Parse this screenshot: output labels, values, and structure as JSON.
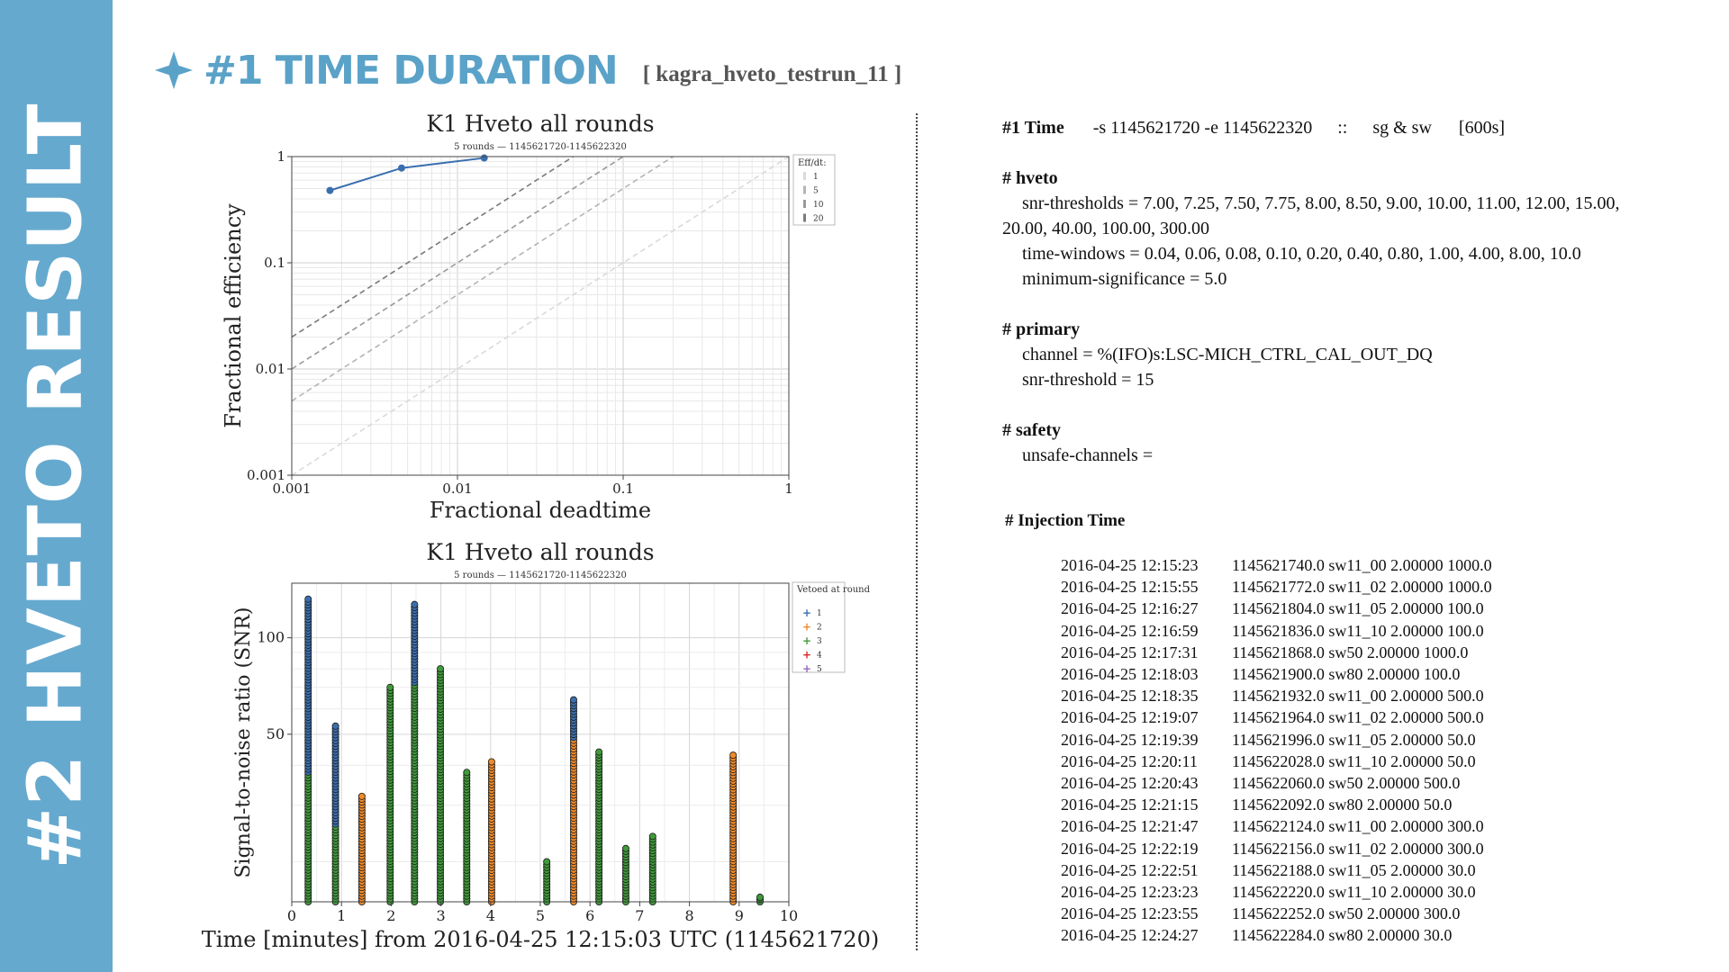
{
  "sidebar": {
    "title": "#2 HVETO RESULT"
  },
  "header": {
    "title": "#1 TIME DURATION",
    "tag": "[ kagra_hveto_testrun_11 ]",
    "icon": "star-icon",
    "accent": "#5aa2c8"
  },
  "colors": {
    "sidebar": "#66a9cf",
    "round1": "#3a6fae",
    "round2": "#f08a2a",
    "round3": "#3f9a3a",
    "round4": "#d62728",
    "round5": "#9467bd"
  },
  "chart_data": [
    {
      "type": "line",
      "title": "K1 Hveto all rounds",
      "subtitle": "5 rounds — 1145621720-1145622320",
      "xlabel": "Fractional deadtime",
      "ylabel": "Fractional efficiency",
      "xscale": "log",
      "yscale": "log",
      "xlim": [
        0.001,
        1
      ],
      "ylim": [
        0.001,
        1
      ],
      "x_ticks": [
        "0.001",
        "0.01",
        "0.1",
        "1"
      ],
      "y_ticks": [
        "0.001",
        "0.01",
        "0.1",
        "1"
      ],
      "grid": true,
      "series": [
        {
          "x": [
            0.0017,
            0.0046,
            0.0145
          ],
          "y": [
            0.48,
            0.78,
            0.97
          ]
        }
      ],
      "reference_lines": {
        "eff_dt": [
          1,
          5,
          10,
          20
        ]
      },
      "legend": {
        "title": "Eff/dt:",
        "entries": [
          "1",
          "5",
          "10",
          "20"
        ],
        "placement": "top-right"
      }
    },
    {
      "type": "scatter",
      "title": "K1 Hveto all rounds",
      "subtitle": "5 rounds — 1145621720-1145622320",
      "xlabel": "Time [minutes] from 2016-04-25 12:15:03 UTC (1145621720)",
      "ylabel": "Signal-to-noise ratio (SNR)",
      "xlim": [
        0,
        10
      ],
      "ylim": [
        15,
        148
      ],
      "yscale": "log",
      "x_ticks": [
        "0",
        "1",
        "2",
        "3",
        "4",
        "5",
        "6",
        "7",
        "8",
        "9",
        "10"
      ],
      "y_ticks": [
        {
          "value": 50,
          "label": "50"
        },
        {
          "value": 100,
          "label": "100"
        }
      ],
      "grid": true,
      "legend": {
        "title": "Vetoed at round",
        "entries": [
          "1",
          "2",
          "3",
          "4",
          "5"
        ],
        "placement": "top-right"
      },
      "clusters": [
        {
          "x": 0.33,
          "max_snr": 132,
          "segments": [
            [
              15,
              38,
              3
            ],
            [
              38,
              132,
              1
            ]
          ]
        },
        {
          "x": 0.88,
          "max_snr": 53,
          "segments": [
            [
              15,
              26,
              3
            ],
            [
              26,
              53,
              1
            ]
          ]
        },
        {
          "x": 1.41,
          "max_snr": 32,
          "segments": [
            [
              15,
              32,
              2
            ]
          ]
        },
        {
          "x": 1.98,
          "max_snr": 70,
          "segments": [
            [
              15,
              70,
              3
            ]
          ]
        },
        {
          "x": 2.47,
          "max_snr": 127,
          "segments": [
            [
              15,
              72,
              3
            ],
            [
              72,
              127,
              1
            ]
          ]
        },
        {
          "x": 2.99,
          "max_snr": 80,
          "segments": [
            [
              15,
              80,
              3
            ]
          ]
        },
        {
          "x": 3.52,
          "max_snr": 38,
          "segments": [
            [
              15,
              38,
              3
            ]
          ]
        },
        {
          "x": 4.02,
          "max_snr": 41,
          "segments": [
            [
              15,
              41,
              2
            ]
          ]
        },
        {
          "x": 5.13,
          "max_snr": 20,
          "segments": [
            [
              15,
              20,
              3
            ]
          ]
        },
        {
          "x": 5.67,
          "max_snr": 64,
          "segments": [
            [
              15,
              48,
              2
            ],
            [
              48,
              64,
              1
            ]
          ]
        },
        {
          "x": 6.18,
          "max_snr": 44,
          "segments": [
            [
              15,
              44,
              3
            ]
          ]
        },
        {
          "x": 6.72,
          "max_snr": 22,
          "segments": [
            [
              15,
              22,
              3
            ]
          ]
        },
        {
          "x": 7.26,
          "max_snr": 24,
          "segments": [
            [
              15,
              24,
              3
            ]
          ]
        },
        {
          "x": 8.88,
          "max_snr": 43,
          "segments": [
            [
              15,
              43,
              2
            ]
          ]
        },
        {
          "x": 9.42,
          "max_snr": 15.5,
          "segments": [
            [
              15,
              15.5,
              3
            ]
          ]
        }
      ]
    }
  ],
  "config": {
    "time": {
      "label": "#1 Time",
      "value": "-s 1145621720 -e 1145622320",
      "sep": "::",
      "mode": "sg & sw",
      "duration": "[600s]"
    },
    "hveto": {
      "header": "# hveto",
      "snr_thresholds": "snr-thresholds = 7.00, 7.25, 7.50, 7.75, 8.00, 8.50, 9.00, 10.00, 11.00, 12.00, 15.00,",
      "snr_thresholds_cont": "20.00, 40.00, 100.00, 300.00",
      "time_windows": "time-windows = 0.04, 0.06, 0.08, 0.10, 0.20, 0.40, 0.80, 1.00, 4.00, 8.00, 10.0",
      "min_sig": "minimum-significance = 5.0"
    },
    "primary": {
      "header": "# primary",
      "channel": "channel = %(IFO)s:LSC-MICH_CTRL_CAL_OUT_DQ",
      "snr_threshold": "snr-threshold = 15"
    },
    "safety": {
      "header": "# safety",
      "unsafe": "unsafe-channels ="
    }
  },
  "injection": {
    "title": "# Injection Time",
    "rows": [
      {
        "time": "2016-04-25 12:15:23",
        "info": "1145621740.0 sw11_00 2.00000 1000.0"
      },
      {
        "time": "2016-04-25 12:15:55",
        "info": "1145621772.0 sw11_02 2.00000 1000.0"
      },
      {
        "time": "2016-04-25 12:16:27",
        "info": "1145621804.0 sw11_05 2.00000 100.0"
      },
      {
        "time": "2016-04-25 12:16:59",
        "info": "1145621836.0 sw11_10 2.00000 100.0"
      },
      {
        "time": "2016-04-25 12:17:31",
        "info": "1145621868.0 sw50 2.00000 1000.0"
      },
      {
        "time": "2016-04-25 12:18:03",
        "info": "1145621900.0 sw80 2.00000 100.0"
      },
      {
        "time": "2016-04-25 12:18:35",
        "info": "1145621932.0 sw11_00 2.00000 500.0"
      },
      {
        "time": "2016-04-25 12:19:07",
        "info": "1145621964.0 sw11_02 2.00000 500.0"
      },
      {
        "time": "2016-04-25 12:19:39",
        "info": "1145621996.0 sw11_05 2.00000 50.0"
      },
      {
        "time": "2016-04-25 12:20:11",
        "info": "1145622028.0 sw11_10 2.00000 50.0"
      },
      {
        "time": "2016-04-25 12:20:43",
        "info": "1145622060.0 sw50 2.00000 500.0"
      },
      {
        "time": "2016-04-25 12:21:15",
        "info": "1145622092.0 sw80 2.00000 50.0"
      },
      {
        "time": "2016-04-25 12:21:47",
        "info": "1145622124.0 sw11_00 2.00000 300.0"
      },
      {
        "time": "2016-04-25 12:22:19",
        "info": "1145622156.0 sw11_02 2.00000 300.0"
      },
      {
        "time": "2016-04-25 12:22:51",
        "info": "1145622188.0 sw11_05 2.00000 30.0"
      },
      {
        "time": "2016-04-25 12:23:23",
        "info": "1145622220.0 sw11_10 2.00000 30.0"
      },
      {
        "time": "2016-04-25 12:23:55",
        "info": "1145622252.0 sw50 2.00000 300.0"
      },
      {
        "time": "2016-04-25 12:24:27",
        "info": "1145622284.0 sw80 2.00000 30.0"
      }
    ]
  }
}
